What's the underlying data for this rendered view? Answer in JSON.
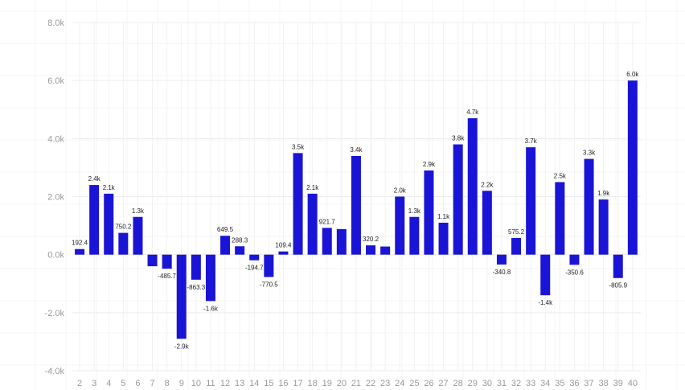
{
  "colors": {
    "bar": "#1a14d6",
    "grid": "#ececec",
    "background": "#ffffff"
  },
  "chart_data": {
    "type": "bar",
    "categories": [
      "2",
      "3",
      "4",
      "5",
      "6",
      "7",
      "8",
      "9",
      "10",
      "11",
      "12",
      "13",
      "14",
      "15",
      "16",
      "17",
      "18",
      "19",
      "20",
      "21",
      "22",
      "23",
      "24",
      "25",
      "26",
      "27",
      "28",
      "29",
      "30",
      "31",
      "32",
      "33",
      "34",
      "35",
      "36",
      "37",
      "38",
      "39",
      "40"
    ],
    "values": [
      192.4,
      2400,
      2100,
      750.2,
      1300,
      -400,
      -485.7,
      -2900,
      -863.3,
      -1600,
      649.5,
      288.3,
      -194.7,
      -770.5,
      109.4,
      3500,
      2100,
      921.7,
      880,
      3400,
      320.2,
      280,
      2000,
      1300,
      2900,
      1100,
      3800,
      4700,
      2200,
      -340.8,
      575.2,
      3700,
      -1400,
      2500,
      -350.6,
      3300,
      1900,
      -805.9,
      6000
    ],
    "data_labels": [
      "192.4",
      "2.4k",
      "2.1k",
      "750.2",
      "1.3k",
      "",
      "-485.7",
      "-2.9k",
      "-863.3",
      "-1.6k",
      "649.5",
      "288.3",
      "-194.7",
      "-770.5",
      "109.4",
      "3.5k",
      "2.1k",
      "921.7",
      "",
      "3.4k",
      "320.2",
      "",
      "2.0k",
      "1.3k",
      "2.9k",
      "1.1k",
      "3.8k",
      "4.7k",
      "2.2k",
      "-340.8",
      "575.2",
      "3.7k",
      "-1.4k",
      "2.5k",
      "-350.6",
      "3.3k",
      "1.9k",
      "-805.9",
      "6.0k"
    ],
    "y_ticks": [
      "8.0k",
      "6.0k",
      "4.0k",
      "2.0k",
      "0.0k",
      "-2.0k",
      "-4.0k"
    ],
    "y_tick_values": [
      8000,
      6000,
      4000,
      2000,
      0,
      -2000,
      -4000
    ],
    "ylim": [
      -4000,
      8000
    ],
    "title": "",
    "xlabel": "",
    "ylabel": "",
    "grid": true,
    "legend": "none"
  }
}
